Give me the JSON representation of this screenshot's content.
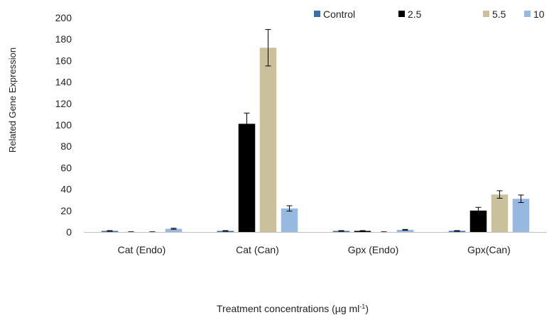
{
  "chart_data": {
    "type": "bar",
    "xlabel": "Treatment concentrations (µg ml",
    "xlabel_sup": "-1",
    "xlabel_tail": ")",
    "ylabel": "Related Gene Expression",
    "ylim": [
      0,
      200
    ],
    "yticks": [
      0,
      20,
      40,
      60,
      80,
      100,
      120,
      140,
      160,
      180,
      200
    ],
    "grid": false,
    "legend_position": "top-right",
    "categories": [
      "Cat (Endo)",
      "Cat (Can)",
      "Gpx (Endo)",
      "Gpx(Can)"
    ],
    "series": [
      {
        "name": "Control",
        "color": "#3e6ea7",
        "values": [
          1,
          1,
          1,
          1
        ],
        "errors": [
          0.3,
          0.3,
          0.3,
          0.3
        ]
      },
      {
        "name": "2.5",
        "color": "#000000",
        "values": [
          0,
          101,
          1,
          20
        ],
        "errors": [
          0.2,
          10,
          0.3,
          3
        ]
      },
      {
        "name": "5.5",
        "color": "#cbc09c",
        "values": [
          0,
          172,
          0,
          35
        ],
        "errors": [
          0.2,
          17,
          0.2,
          3.5
        ]
      },
      {
        "name": "10",
        "color": "#97b9df",
        "values": [
          3,
          22,
          2,
          31
        ],
        "errors": [
          0.5,
          2.5,
          0.4,
          3.5
        ]
      }
    ]
  }
}
